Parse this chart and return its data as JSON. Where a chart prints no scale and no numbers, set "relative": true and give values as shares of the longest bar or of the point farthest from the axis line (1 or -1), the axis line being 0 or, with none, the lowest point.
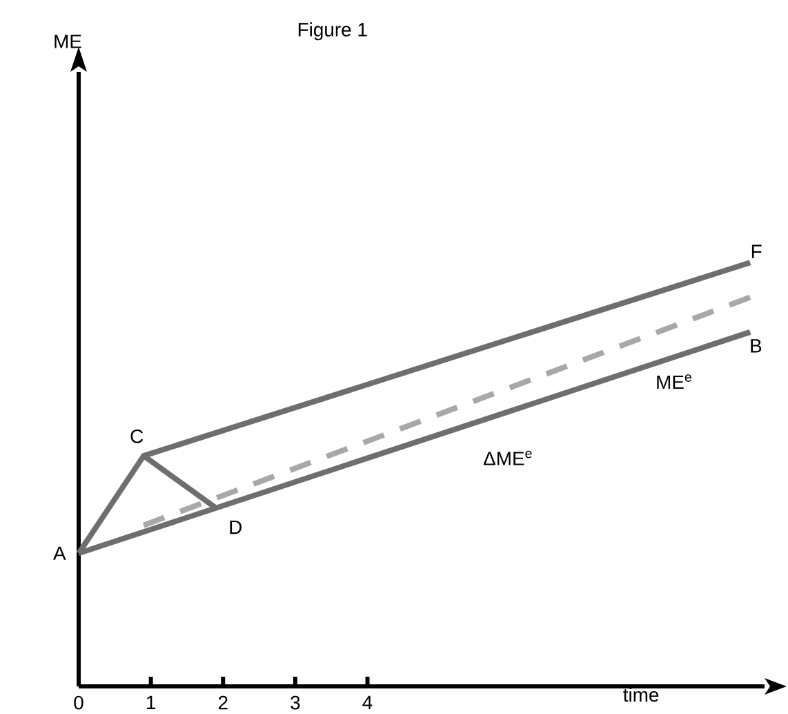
{
  "chart_data": {
    "type": "line",
    "title": "Figure 1",
    "xlabel": "time",
    "relative": true,
    "xlim": [
      0,
      9.5
    ],
    "xticks": [
      0,
      1,
      2,
      3,
      4
    ],
    "series": [
      {
        "color": "#6e6e6e",
        "x": [
          0,
          9.3
        ],
        "values": [
          0.314,
          0.836
        ]
      },
      {
        "color": "#6e6e6e",
        "x": [
          0,
          0.9,
          9.3
        ],
        "values": [
          0.314,
          0.544,
          1
        ]
      },
      {
        "color": "#6e6e6e",
        "x": [
          0.9,
          1.9
        ],
        "values": [
          0.544,
          0.421
        ]
      },
      {
        "color": "#a8a8a8",
        "line_style": "dashed",
        "x": [
          0.9,
          9.3
        ],
        "values": [
          0.38,
          0.918
        ]
      }
    ],
    "annotations": [
      {
        "text": "A",
        "x": 0,
        "y": 0.314
      },
      {
        "text": "C",
        "x": 0.9,
        "y": 0.544
      },
      {
        "text": "D",
        "x": 1.9,
        "y": 0.421
      },
      {
        "text": "F",
        "x": 9.3,
        "y": 1
      },
      {
        "text": "B",
        "x": 9.3,
        "y": 0.836
      },
      "ΔME$^{e}$",
      "ME$^{e}$",
      "ME"
    ]
  }
}
